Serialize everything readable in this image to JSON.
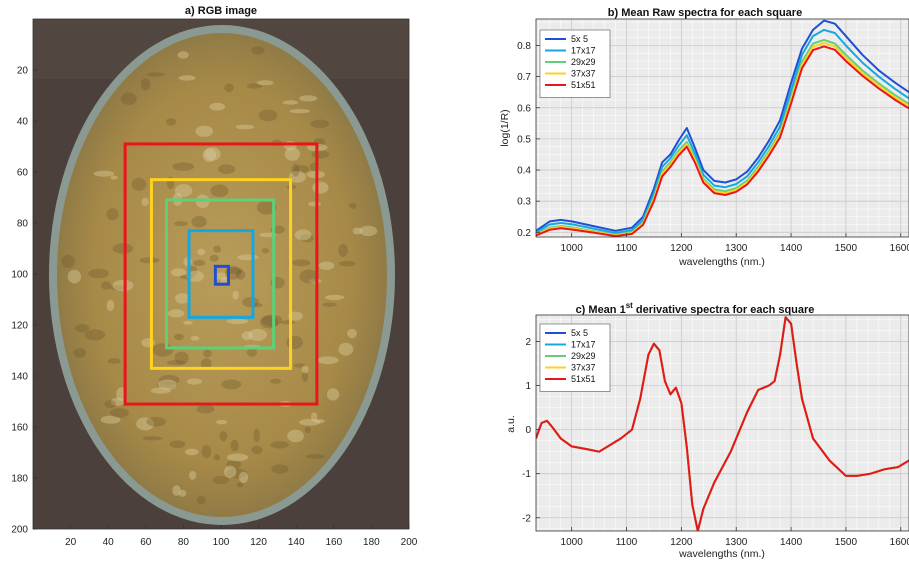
{
  "chart_data": [
    {
      "type": "image",
      "title": "a) RGB image",
      "xlim": [
        0,
        200
      ],
      "ylim": [
        0,
        200
      ],
      "xticks": [
        20,
        40,
        60,
        80,
        100,
        120,
        140,
        160,
        180,
        200
      ],
      "yticks": [
        20,
        40,
        60,
        80,
        100,
        120,
        140,
        160,
        180,
        200
      ],
      "squares": [
        {
          "name": "5x 5",
          "color": "#1f4fd6",
          "x0": 97,
          "x1": 104,
          "y0": 97,
          "y1": 104
        },
        {
          "name": "17x17",
          "color": "#17a7e0",
          "x0": 83,
          "x1": 117,
          "y0": 83,
          "y1": 117
        },
        {
          "name": "29x29",
          "color": "#5fd07a",
          "x0": 71,
          "x1": 128,
          "y0": 71,
          "y1": 129
        },
        {
          "name": "37x37",
          "color": "#ffd21f",
          "x0": 63,
          "x1": 137,
          "y0": 63,
          "y1": 137
        },
        {
          "name": "51x51",
          "color": "#e8161b",
          "x0": 49,
          "x1": 151,
          "y0": 49,
          "y1": 151
        }
      ]
    },
    {
      "type": "line",
      "title": "b) Mean Raw spectra for each square",
      "xlabel": "wavelengths (nm.)",
      "ylabel": "log(1/R)",
      "xlim": [
        935,
        1615
      ],
      "ylim": [
        0.185,
        0.885
      ],
      "xticks": [
        1000,
        1100,
        1200,
        1300,
        1400,
        1500,
        1600
      ],
      "yticks": [
        0.2,
        0.3,
        0.4,
        0.5,
        0.6,
        0.7,
        0.8
      ],
      "xtick_labels": [
        "1000",
        "1100",
        "1200",
        "1300",
        "1400",
        "1500",
        "1600"
      ],
      "ytick_labels": [
        "0.2",
        "0.3",
        "0.4",
        "0.5",
        "0.6",
        "0.7",
        "0.8"
      ],
      "x": [
        935,
        960,
        980,
        1000,
        1040,
        1080,
        1110,
        1130,
        1150,
        1165,
        1180,
        1195,
        1210,
        1225,
        1240,
        1260,
        1280,
        1300,
        1320,
        1340,
        1360,
        1380,
        1400,
        1420,
        1440,
        1460,
        1480,
        1500,
        1530,
        1560,
        1590,
        1615
      ],
      "series": [
        {
          "name": "5x 5",
          "color": "#1f4fd6",
          "values": [
            0.205,
            0.235,
            0.24,
            0.235,
            0.22,
            0.205,
            0.215,
            0.25,
            0.34,
            0.425,
            0.45,
            0.495,
            0.535,
            0.47,
            0.4,
            0.365,
            0.36,
            0.37,
            0.395,
            0.44,
            0.495,
            0.56,
            0.68,
            0.79,
            0.85,
            0.88,
            0.87,
            0.83,
            0.77,
            0.72,
            0.68,
            0.65
          ]
        },
        {
          "name": "17x17",
          "color": "#17a7e0",
          "values": [
            0.2,
            0.225,
            0.23,
            0.226,
            0.212,
            0.198,
            0.207,
            0.24,
            0.325,
            0.41,
            0.438,
            0.478,
            0.512,
            0.452,
            0.385,
            0.35,
            0.345,
            0.355,
            0.38,
            0.425,
            0.478,
            0.54,
            0.655,
            0.77,
            0.83,
            0.85,
            0.84,
            0.8,
            0.745,
            0.7,
            0.66,
            0.63
          ]
        },
        {
          "name": "29x29",
          "color": "#5fd07a",
          "values": [
            0.195,
            0.215,
            0.22,
            0.216,
            0.204,
            0.192,
            0.2,
            0.231,
            0.312,
            0.395,
            0.425,
            0.462,
            0.49,
            0.437,
            0.372,
            0.338,
            0.332,
            0.342,
            0.366,
            0.41,
            0.462,
            0.522,
            0.633,
            0.748,
            0.806,
            0.818,
            0.806,
            0.77,
            0.72,
            0.678,
            0.64,
            0.612
          ]
        },
        {
          "name": "37x37",
          "color": "#ffd21f",
          "values": [
            0.192,
            0.212,
            0.217,
            0.213,
            0.202,
            0.19,
            0.198,
            0.228,
            0.307,
            0.388,
            0.418,
            0.455,
            0.483,
            0.43,
            0.366,
            0.332,
            0.326,
            0.336,
            0.36,
            0.403,
            0.455,
            0.514,
            0.624,
            0.738,
            0.796,
            0.808,
            0.797,
            0.76,
            0.712,
            0.671,
            0.633,
            0.606
          ]
        },
        {
          "name": "51x51",
          "color": "#e8161b",
          "values": [
            0.19,
            0.208,
            0.213,
            0.209,
            0.199,
            0.188,
            0.195,
            0.224,
            0.3,
            0.38,
            0.41,
            0.447,
            0.475,
            0.423,
            0.36,
            0.326,
            0.32,
            0.33,
            0.354,
            0.396,
            0.447,
            0.505,
            0.614,
            0.727,
            0.785,
            0.797,
            0.786,
            0.75,
            0.703,
            0.662,
            0.625,
            0.598
          ]
        }
      ],
      "legend": "top-left",
      "grid": true
    },
    {
      "type": "line",
      "title": "c) Mean 1",
      "title_sup": "st",
      "title_rest": " derivative spectra for each square",
      "xlabel": "wavelengths (nm.)",
      "ylabel": "a.u.",
      "xlim": [
        935,
        1615
      ],
      "ylim": [
        -2.3,
        2.6
      ],
      "xticks": [
        1000,
        1100,
        1200,
        1300,
        1400,
        1500,
        1600
      ],
      "yticks": [
        -2,
        -1,
        0,
        1,
        2
      ],
      "xtick_labels": [
        "1000",
        "1100",
        "1200",
        "1300",
        "1400",
        "1500",
        "1600"
      ],
      "ytick_labels": [
        "-2",
        "-1",
        "0",
        "1",
        "2"
      ],
      "x": [
        935,
        945,
        955,
        965,
        980,
        1000,
        1030,
        1050,
        1070,
        1090,
        1110,
        1125,
        1140,
        1150,
        1160,
        1170,
        1180,
        1190,
        1200,
        1210,
        1220,
        1230,
        1240,
        1260,
        1290,
        1320,
        1340,
        1360,
        1370,
        1380,
        1390,
        1400,
        1410,
        1420,
        1440,
        1470,
        1500,
        1520,
        1545,
        1570,
        1595,
        1615
      ],
      "series": [
        {
          "name": "5x 5",
          "color": "#1f4fd6",
          "values": [
            -0.2,
            0.15,
            0.2,
            0.05,
            -0.2,
            -0.38,
            -0.45,
            -0.5,
            -0.35,
            -0.2,
            0.0,
            0.7,
            1.7,
            1.95,
            1.8,
            1.1,
            0.8,
            0.95,
            0.6,
            -0.4,
            -1.7,
            -2.3,
            -1.8,
            -1.2,
            -0.5,
            0.4,
            0.9,
            1.0,
            1.1,
            1.7,
            2.55,
            2.4,
            1.5,
            0.7,
            -0.2,
            -0.7,
            -1.05,
            -1.05,
            -1.0,
            -0.9,
            -0.85,
            -0.7
          ]
        },
        {
          "name": "17x17",
          "color": "#17a7e0",
          "values": [
            -0.2,
            0.15,
            0.2,
            0.05,
            -0.2,
            -0.38,
            -0.45,
            -0.5,
            -0.35,
            -0.2,
            0.0,
            0.7,
            1.7,
            1.95,
            1.8,
            1.1,
            0.8,
            0.95,
            0.6,
            -0.4,
            -1.7,
            -2.3,
            -1.8,
            -1.2,
            -0.5,
            0.4,
            0.9,
            1.0,
            1.1,
            1.7,
            2.55,
            2.4,
            1.5,
            0.7,
            -0.2,
            -0.7,
            -1.05,
            -1.05,
            -1.0,
            -0.9,
            -0.85,
            -0.7
          ]
        },
        {
          "name": "29x29",
          "color": "#5fd07a",
          "values": [
            -0.2,
            0.15,
            0.2,
            0.05,
            -0.2,
            -0.38,
            -0.45,
            -0.5,
            -0.35,
            -0.2,
            0.0,
            0.7,
            1.7,
            1.95,
            1.8,
            1.1,
            0.8,
            0.95,
            0.6,
            -0.4,
            -1.7,
            -2.3,
            -1.8,
            -1.2,
            -0.5,
            0.4,
            0.9,
            1.0,
            1.1,
            1.7,
            2.55,
            2.4,
            1.5,
            0.7,
            -0.2,
            -0.7,
            -1.05,
            -1.05,
            -1.0,
            -0.9,
            -0.85,
            -0.7
          ]
        },
        {
          "name": "37x37",
          "color": "#ffd21f",
          "values": [
            -0.2,
            0.15,
            0.2,
            0.05,
            -0.2,
            -0.38,
            -0.45,
            -0.5,
            -0.35,
            -0.2,
            0.0,
            0.7,
            1.7,
            1.95,
            1.8,
            1.1,
            0.8,
            0.95,
            0.6,
            -0.4,
            -1.7,
            -2.3,
            -1.8,
            -1.2,
            -0.5,
            0.4,
            0.9,
            1.0,
            1.1,
            1.7,
            2.55,
            2.4,
            1.5,
            0.7,
            -0.2,
            -0.7,
            -1.05,
            -1.05,
            -1.0,
            -0.9,
            -0.85,
            -0.7
          ]
        },
        {
          "name": "51x51",
          "color": "#e8161b",
          "values": [
            -0.2,
            0.15,
            0.2,
            0.05,
            -0.2,
            -0.38,
            -0.45,
            -0.5,
            -0.35,
            -0.2,
            0.0,
            0.7,
            1.7,
            1.95,
            1.8,
            1.1,
            0.8,
            0.95,
            0.6,
            -0.4,
            -1.7,
            -2.3,
            -1.8,
            -1.2,
            -0.5,
            0.4,
            0.9,
            1.0,
            1.1,
            1.7,
            2.55,
            2.4,
            1.5,
            0.7,
            -0.2,
            -0.7,
            -1.05,
            -1.05,
            -1.0,
            -0.9,
            -0.85,
            -0.7
          ]
        }
      ],
      "legend": "top-left",
      "grid": true
    }
  ]
}
